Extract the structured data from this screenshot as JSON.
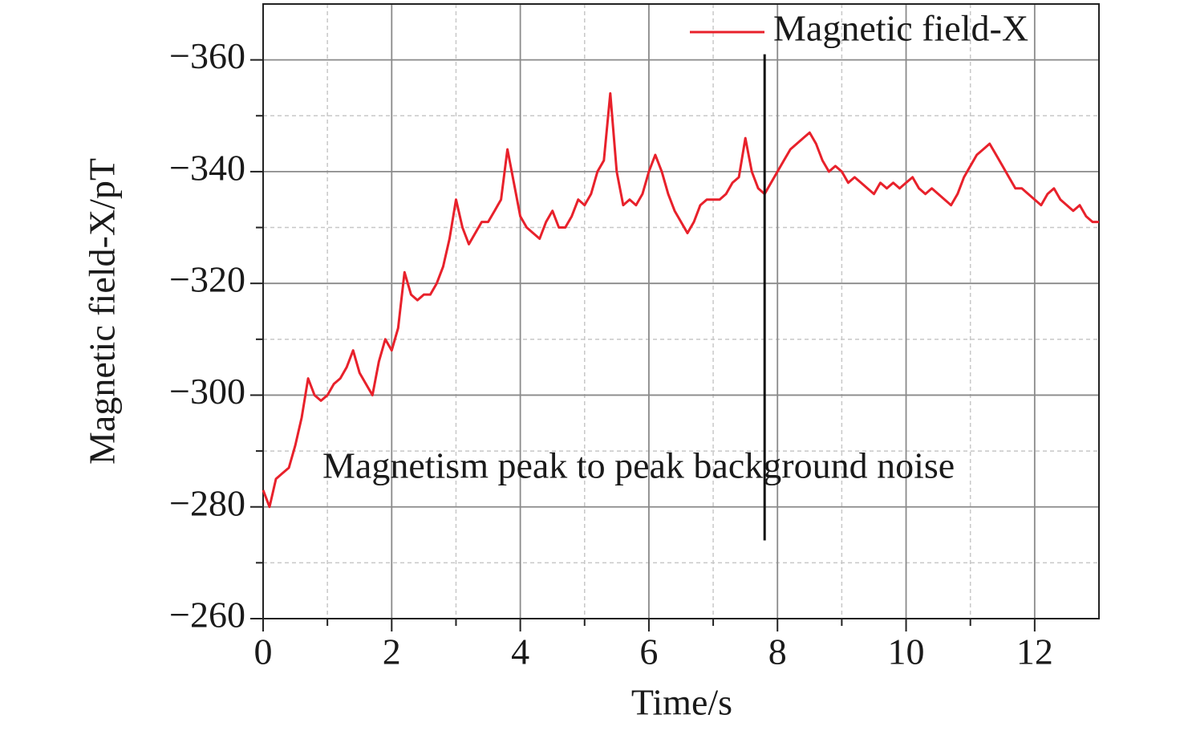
{
  "chart_data": {
    "type": "line",
    "xlabel": "Time/s",
    "ylabel": "Magnetic field-X/pT",
    "annotation": "Magnetism peak to peak background noise",
    "vline": {
      "x": 7.8,
      "y": [
        -274,
        -361
      ]
    },
    "xlim": [
      0,
      13
    ],
    "ylim": [
      -260,
      -370
    ],
    "xticks": [
      0,
      2,
      4,
      6,
      8,
      10,
      12
    ],
    "xminor": [
      1,
      3,
      5,
      7,
      9,
      11
    ],
    "yticks": [
      {
        "value": -260,
        "label": "−260"
      },
      {
        "value": -280,
        "label": "−280"
      },
      {
        "value": -300,
        "label": "−300"
      },
      {
        "value": -320,
        "label": "−320"
      },
      {
        "value": -340,
        "label": "−340"
      },
      {
        "value": -360,
        "label": "−360"
      }
    ],
    "yminor": [
      -270,
      -290,
      -310,
      -330,
      -350
    ],
    "grid": true,
    "legend": "upper right",
    "x": [
      0,
      0.1,
      0.2,
      0.3,
      0.4,
      0.5,
      0.6,
      0.7,
      0.8,
      0.9,
      1.0,
      1.1,
      1.2,
      1.3,
      1.4,
      1.5,
      1.6,
      1.7,
      1.8,
      1.9,
      2.0,
      2.1,
      2.2,
      2.3,
      2.4,
      2.5,
      2.6,
      2.7,
      2.8,
      2.9,
      3.0,
      3.1,
      3.2,
      3.3,
      3.4,
      3.5,
      3.6,
      3.7,
      3.8,
      3.9,
      4.0,
      4.1,
      4.2,
      4.3,
      4.4,
      4.5,
      4.6,
      4.7,
      4.8,
      4.9,
      5.0,
      5.1,
      5.2,
      5.3,
      5.4,
      5.5,
      5.6,
      5.7,
      5.8,
      5.9,
      6.0,
      6.1,
      6.2,
      6.3,
      6.4,
      6.5,
      6.6,
      6.7,
      6.8,
      6.9,
      7.0,
      7.1,
      7.2,
      7.3,
      7.4,
      7.5,
      7.6,
      7.7,
      7.8,
      7.9,
      8.0,
      8.1,
      8.2,
      8.3,
      8.4,
      8.5,
      8.6,
      8.7,
      8.8,
      8.9,
      9.0,
      9.1,
      9.2,
      9.3,
      9.4,
      9.5,
      9.6,
      9.7,
      9.8,
      9.9,
      10.0,
      10.1,
      10.2,
      10.3,
      10.4,
      10.5,
      10.6,
      10.7,
      10.8,
      10.9,
      11.0,
      11.1,
      11.2,
      11.3,
      11.4,
      11.5,
      11.6,
      11.7,
      11.8,
      11.9,
      12.0,
      12.1,
      12.2,
      12.3,
      12.4,
      12.5,
      12.6,
      12.7,
      12.8,
      12.9,
      13.0
    ],
    "series": [
      {
        "name": "Magnetic field-X",
        "color": "#e8212b",
        "values": [
          -283,
          -280,
          -285,
          -286,
          -287,
          -291,
          -296,
          -303,
          -300,
          -299,
          -300,
          -302,
          -303,
          -305,
          -308,
          -304,
          -302,
          -300,
          -306,
          -310,
          -308,
          -312,
          -322,
          -318,
          -317,
          -318,
          -318,
          -320,
          -323,
          -328,
          -335,
          -330,
          -327,
          -329,
          -331,
          -331,
          -333,
          -335,
          -344,
          -338,
          -332,
          -330,
          -329,
          -328,
          -331,
          -333,
          -330,
          -330,
          -332,
          -335,
          -334,
          -336,
          -340,
          -342,
          -354,
          -340,
          -334,
          -335,
          -334,
          -336,
          -340,
          -343,
          -340,
          -336,
          -333,
          -331,
          -329,
          -331,
          -334,
          -335,
          -335,
          -335,
          -336,
          -338,
          -339,
          -346,
          -340,
          -337,
          -336,
          -338,
          -340,
          -342,
          -344,
          -345,
          -346,
          -347,
          -345,
          -342,
          -340,
          -341,
          -340,
          -338,
          -339,
          -338,
          -337,
          -336,
          -338,
          -337,
          -338,
          -337,
          -338,
          -339,
          -337,
          -336,
          -337,
          -336,
          -335,
          -334,
          -336,
          -339,
          -341,
          -343,
          -344,
          -345,
          -343,
          -341,
          -339,
          -337,
          -337,
          -336,
          -335,
          -334,
          -336,
          -337,
          -335,
          -334,
          -333,
          -334,
          -332,
          -331,
          -331
        ]
      }
    ]
  }
}
